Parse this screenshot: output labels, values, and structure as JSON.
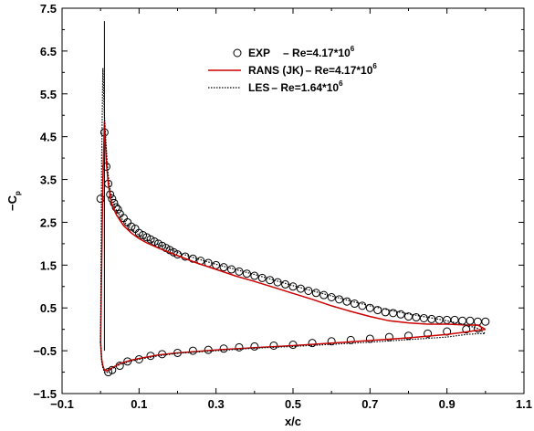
{
  "chart_data": {
    "type": "line",
    "xlabel": "x/c",
    "ylabel": "−C",
    "ylabel_sub": "p",
    "xlim": [
      -0.1,
      1.1
    ],
    "ylim": [
      -1.5,
      7.5
    ],
    "xticks": [
      "−0.1",
      "0.1",
      "0.3",
      "0.5",
      "0.7",
      "0.9",
      "1.1"
    ],
    "yticks": [
      "−1.5",
      "−0.5",
      "0.5",
      "1.5",
      "2.5",
      "3.5",
      "4.5",
      "5.5",
      "6.5",
      "7.5"
    ],
    "grid": false,
    "legend_position": "top-right",
    "series": [
      {
        "name": "EXP",
        "legend": [
          "EXP",
          "– Re=4.17*10",
          "6"
        ],
        "style": "markers",
        "color": "#000000",
        "upper": {
          "x": [
            0.0,
            0.01,
            0.015,
            0.02,
            0.025,
            0.03,
            0.035,
            0.04,
            0.045,
            0.05,
            0.06,
            0.07,
            0.08,
            0.09,
            0.1,
            0.11,
            0.12,
            0.13,
            0.14,
            0.15,
            0.16,
            0.17,
            0.18,
            0.19,
            0.2,
            0.22,
            0.24,
            0.26,
            0.28,
            0.3,
            0.32,
            0.34,
            0.36,
            0.38,
            0.4,
            0.42,
            0.44,
            0.46,
            0.48,
            0.5,
            0.52,
            0.54,
            0.56,
            0.58,
            0.6,
            0.62,
            0.64,
            0.66,
            0.68,
            0.7,
            0.72,
            0.74,
            0.76,
            0.78,
            0.8,
            0.82,
            0.84,
            0.86,
            0.88,
            0.9,
            0.92,
            0.94,
            0.96,
            0.98,
            1.0
          ],
          "y": [
            3.05,
            4.6,
            3.8,
            3.4,
            3.15,
            3.05,
            2.95,
            2.85,
            2.8,
            2.7,
            2.6,
            2.5,
            2.4,
            2.35,
            2.25,
            2.2,
            2.15,
            2.1,
            2.05,
            2.0,
            1.95,
            1.9,
            1.85,
            1.8,
            1.75,
            1.7,
            1.65,
            1.6,
            1.55,
            1.5,
            1.45,
            1.4,
            1.35,
            1.3,
            1.25,
            1.2,
            1.15,
            1.1,
            1.05,
            1.0,
            0.95,
            0.9,
            0.85,
            0.8,
            0.75,
            0.7,
            0.65,
            0.6,
            0.55,
            0.5,
            0.45,
            0.4,
            0.38,
            0.35,
            0.3,
            0.28,
            0.26,
            0.24,
            0.22,
            0.22,
            0.22,
            0.2,
            0.2,
            0.18,
            0.18
          ]
        },
        "lower": {
          "x": [
            0.02,
            0.03,
            0.05,
            0.07,
            0.1,
            0.13,
            0.16,
            0.2,
            0.24,
            0.28,
            0.32,
            0.36,
            0.4,
            0.45,
            0.5,
            0.55,
            0.6,
            0.65,
            0.7,
            0.75,
            0.8,
            0.85,
            0.9,
            0.95,
            0.98
          ],
          "y": [
            -1.0,
            -0.95,
            -0.85,
            -0.75,
            -0.7,
            -0.62,
            -0.58,
            -0.55,
            -0.5,
            -0.48,
            -0.45,
            -0.42,
            -0.4,
            -0.38,
            -0.36,
            -0.32,
            -0.28,
            -0.25,
            -0.22,
            -0.18,
            -0.15,
            -0.1,
            -0.05,
            0.0,
            0.02
          ]
        }
      },
      {
        "name": "RANS (JK)",
        "legend": [
          "RANS (JK)",
          "– Re=4.17*10",
          "6"
        ],
        "style": "solid",
        "color": "#cc0000",
        "upper": {
          "x": [
            0.0,
            0.003,
            0.006,
            0.01,
            0.012,
            0.015,
            0.02,
            0.025,
            0.03,
            0.04,
            0.05,
            0.06,
            0.08,
            0.1,
            0.12,
            0.15,
            0.2,
            0.25,
            0.3,
            0.35,
            0.4,
            0.45,
            0.5,
            0.55,
            0.6,
            0.65,
            0.7,
            0.75,
            0.8,
            0.85,
            0.9,
            0.95,
            0.98,
            1.0
          ],
          "y": [
            -0.3,
            1.5,
            3.5,
            4.85,
            4.5,
            3.9,
            3.4,
            3.1,
            2.9,
            2.7,
            2.55,
            2.42,
            2.25,
            2.12,
            2.02,
            1.9,
            1.72,
            1.55,
            1.4,
            1.25,
            1.12,
            0.98,
            0.84,
            0.7,
            0.55,
            0.42,
            0.3,
            0.2,
            0.15,
            0.12,
            0.12,
            0.1,
            0.1,
            0.0
          ]
        },
        "lower": {
          "x": [
            0.0,
            0.003,
            0.006,
            0.01,
            0.015,
            0.02,
            0.03,
            0.05,
            0.08,
            0.1,
            0.15,
            0.2,
            0.3,
            0.4,
            0.5,
            0.6,
            0.7,
            0.8,
            0.9,
            0.95,
            0.98,
            1.0
          ],
          "y": [
            -0.3,
            -0.7,
            -0.85,
            -0.95,
            -0.97,
            -0.95,
            -0.9,
            -0.8,
            -0.72,
            -0.68,
            -0.6,
            -0.55,
            -0.48,
            -0.43,
            -0.38,
            -0.32,
            -0.26,
            -0.2,
            -0.12,
            -0.06,
            -0.02,
            0.0
          ]
        }
      },
      {
        "name": "LES",
        "legend": [
          "LES",
          "– Re=1.64*10",
          "6"
        ],
        "style": "dotted",
        "color": "#000000",
        "upper": {
          "x": [
            0.0,
            0.003,
            0.006,
            0.01,
            0.015,
            0.02,
            0.025,
            0.03,
            0.04,
            0.05,
            0.06,
            0.08,
            0.1,
            0.12,
            0.15,
            0.2,
            0.25,
            0.3,
            0.35,
            0.4,
            0.45,
            0.5,
            0.55,
            0.6,
            0.65,
            0.7,
            0.75,
            0.8,
            0.85,
            0.9,
            0.95,
            0.98,
            1.0
          ],
          "y": [
            -0.3,
            4.0,
            6.1,
            5.0,
            4.2,
            3.6,
            3.25,
            3.05,
            2.8,
            2.65,
            2.52,
            2.34,
            2.2,
            2.1,
            1.98,
            1.8,
            1.65,
            1.52,
            1.4,
            1.28,
            1.15,
            1.02,
            0.9,
            0.78,
            0.66,
            0.55,
            0.45,
            0.36,
            0.28,
            0.2,
            0.1,
            0.02,
            -0.1
          ]
        },
        "lower": {
          "x": [
            0.0,
            0.003,
            0.006,
            0.01,
            0.015,
            0.02,
            0.03,
            0.05,
            0.08,
            0.1,
            0.15,
            0.2,
            0.3,
            0.4,
            0.5,
            0.6,
            0.7,
            0.8,
            0.9,
            0.95,
            0.98,
            1.0
          ],
          "y": [
            -0.3,
            -0.75,
            -0.9,
            -1.0,
            -1.02,
            -0.98,
            -0.92,
            -0.82,
            -0.74,
            -0.7,
            -0.62,
            -0.56,
            -0.5,
            -0.44,
            -0.4,
            -0.35,
            -0.3,
            -0.24,
            -0.18,
            -0.12,
            -0.1,
            -0.1
          ]
        }
      }
    ],
    "extra_lines": [
      {
        "name": "thin-vertical-spike",
        "color": "#000000",
        "x": [
          0.01,
          0.01
        ],
        "y": [
          7.2,
          -0.5
        ]
      }
    ]
  }
}
